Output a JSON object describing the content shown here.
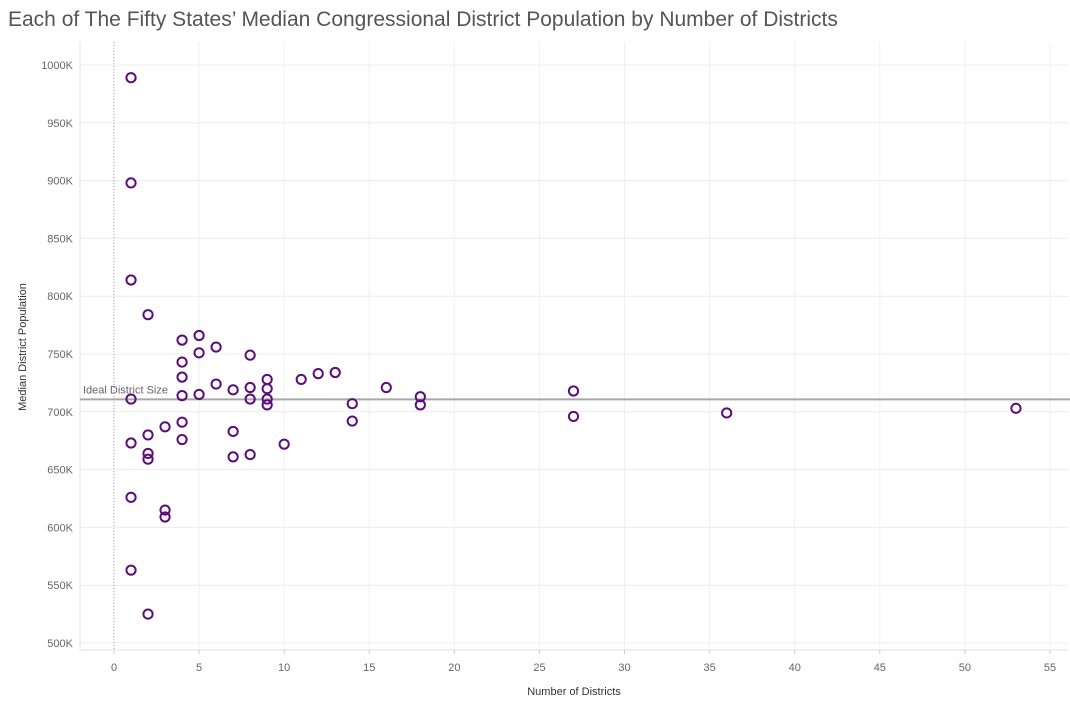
{
  "chart_data": {
    "type": "scatter",
    "title": "Each of The Fifty States’ Median Congressional District Population by Number of Districts",
    "xlabel": "Number of Districts",
    "ylabel": "Median District Population",
    "xlim": [
      -2,
      56
    ],
    "ylim": [
      495000,
      1005000
    ],
    "x_ticks": [
      0,
      5,
      10,
      15,
      20,
      25,
      30,
      35,
      40,
      45,
      50,
      55
    ],
    "x_tick_labels": [
      "0",
      "5",
      "10",
      "15",
      "20",
      "25",
      "30",
      "35",
      "40",
      "45",
      "50",
      "55"
    ],
    "y_ticks": [
      500000,
      550000,
      600000,
      650000,
      700000,
      750000,
      800000,
      850000,
      900000,
      950000,
      1000000
    ],
    "y_tick_labels": [
      "500K",
      "550K",
      "600K",
      "650K",
      "700K",
      "750K",
      "800K",
      "850K",
      "900K",
      "950K",
      "1000K"
    ],
    "grid": true,
    "reference_line": {
      "label": "Ideal District Size",
      "value": 710767
    },
    "marker_color": "#5b0e7a",
    "points": [
      {
        "x": 1,
        "y": 989000
      },
      {
        "x": 1,
        "y": 898000
      },
      {
        "x": 1,
        "y": 814000
      },
      {
        "x": 1,
        "y": 711000
      },
      {
        "x": 1,
        "y": 673000
      },
      {
        "x": 1,
        "y": 626000
      },
      {
        "x": 1,
        "y": 563000
      },
      {
        "x": 2,
        "y": 784000
      },
      {
        "x": 2,
        "y": 680000
      },
      {
        "x": 2,
        "y": 664000
      },
      {
        "x": 2,
        "y": 659000
      },
      {
        "x": 2,
        "y": 525000
      },
      {
        "x": 3,
        "y": 687000
      },
      {
        "x": 3,
        "y": 615000
      },
      {
        "x": 3,
        "y": 609000
      },
      {
        "x": 4,
        "y": 762000
      },
      {
        "x": 4,
        "y": 743000
      },
      {
        "x": 4,
        "y": 730000
      },
      {
        "x": 4,
        "y": 714000
      },
      {
        "x": 4,
        "y": 691000
      },
      {
        "x": 4,
        "y": 676000
      },
      {
        "x": 5,
        "y": 766000
      },
      {
        "x": 5,
        "y": 751000
      },
      {
        "x": 5,
        "y": 715000
      },
      {
        "x": 6,
        "y": 756000
      },
      {
        "x": 6,
        "y": 724000
      },
      {
        "x": 7,
        "y": 719000
      },
      {
        "x": 7,
        "y": 683000
      },
      {
        "x": 7,
        "y": 661000
      },
      {
        "x": 8,
        "y": 749000
      },
      {
        "x": 8,
        "y": 721000
      },
      {
        "x": 8,
        "y": 711000
      },
      {
        "x": 8,
        "y": 663000
      },
      {
        "x": 9,
        "y": 728000
      },
      {
        "x": 9,
        "y": 720000
      },
      {
        "x": 9,
        "y": 711000
      },
      {
        "x": 9,
        "y": 706000
      },
      {
        "x": 10,
        "y": 672000
      },
      {
        "x": 11,
        "y": 728000
      },
      {
        "x": 12,
        "y": 733000
      },
      {
        "x": 13,
        "y": 734000
      },
      {
        "x": 14,
        "y": 707000
      },
      {
        "x": 14,
        "y": 692000
      },
      {
        "x": 16,
        "y": 721000
      },
      {
        "x": 18,
        "y": 713000
      },
      {
        "x": 18,
        "y": 706000
      },
      {
        "x": 27,
        "y": 718000
      },
      {
        "x": 27,
        "y": 696000
      },
      {
        "x": 36,
        "y": 699000
      },
      {
        "x": 53,
        "y": 703000
      }
    ]
  }
}
